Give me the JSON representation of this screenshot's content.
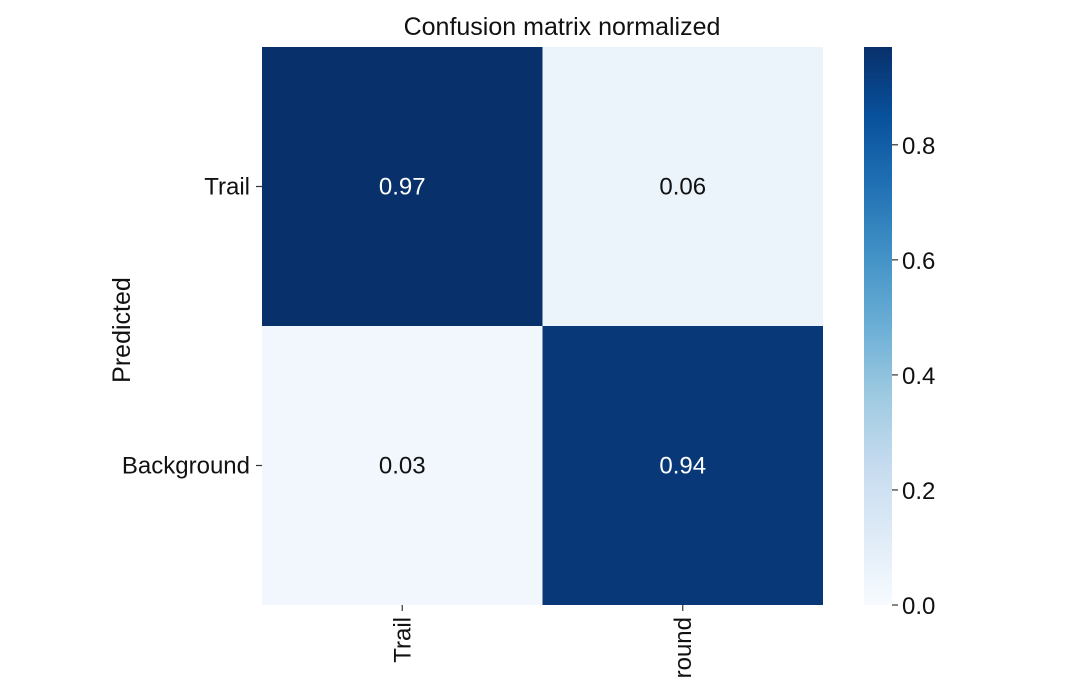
{
  "chart_data": {
    "type": "heatmap",
    "title": "Confusion matrix normalized",
    "ylabel": "Predicted",
    "xlabel": "",
    "row_labels": [
      "Trail",
      "Background"
    ],
    "col_labels": [
      "Trail",
      "round"
    ],
    "values": [
      [
        0.97,
        0.06
      ],
      [
        0.03,
        0.94
      ]
    ],
    "cell_labels": [
      [
        "0.97",
        "0.06"
      ],
      [
        "0.03",
        "0.94"
      ]
    ],
    "colormap": "Blues",
    "colorbar": {
      "range": [
        0,
        0.97
      ],
      "ticks": [
        0.0,
        0.2,
        0.4,
        0.6,
        0.8
      ],
      "tick_labels": [
        "0.0",
        "0.2",
        "0.4",
        "0.6",
        "0.8"
      ]
    },
    "colors": {
      "low": "#f7fbff",
      "high": "#08306b",
      "text_on_dark": "#ffffff",
      "text_on_light": "#111111"
    }
  }
}
